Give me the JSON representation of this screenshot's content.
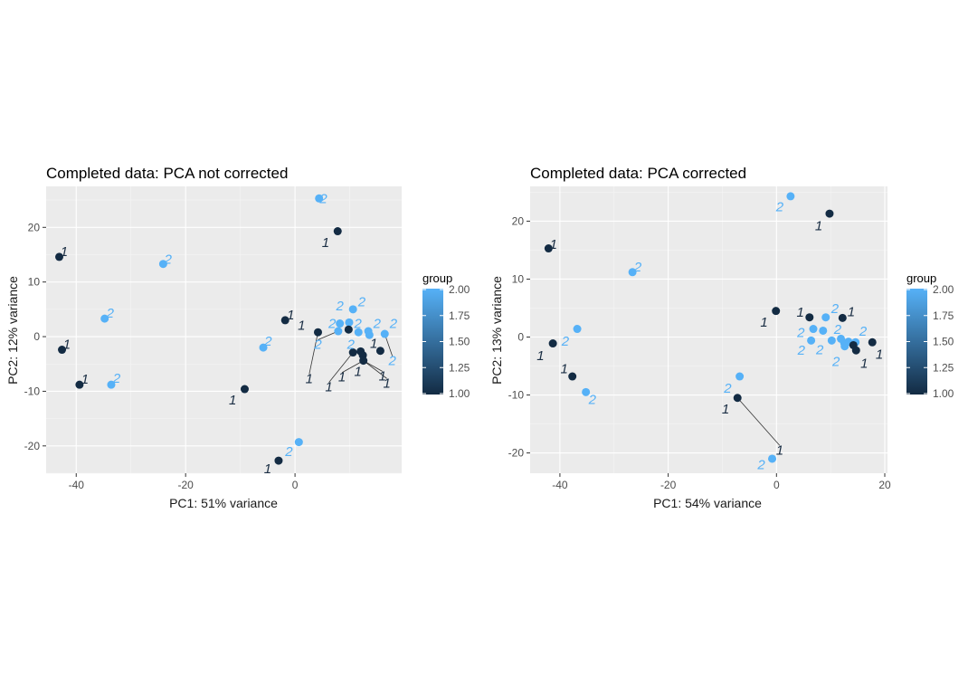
{
  "colors": {
    "panel_bg": "#ebebeb",
    "grid_major": "#ffffff",
    "group_low": "#132b43",
    "group_high": "#56b1f7",
    "label_low": "#1a2e44",
    "label_high": "#56b1f7"
  },
  "chart_data": [
    {
      "type": "scatter",
      "title": "Completed data: PCA not corrected",
      "xlabel": "PC1: 51% variance",
      "ylabel": "PC2: 12% variance",
      "xlim": [
        -45.5,
        19.5
      ],
      "ylim": [
        -25,
        27.5
      ],
      "xticks": [
        -40,
        -20,
        0
      ],
      "yticks": [
        -20,
        -10,
        0,
        10,
        20
      ],
      "grid": true,
      "legend": {
        "title": "group",
        "placement": "right",
        "type": "colorbar",
        "range": [
          1.0,
          2.0
        ],
        "labels": [
          "2.00",
          "1.75",
          "1.50",
          "1.25",
          "1.00"
        ]
      },
      "points": [
        {
          "x": 4.4,
          "y": 25.3,
          "group": 2,
          "label": "2"
        },
        {
          "x": 7.8,
          "y": 19.3,
          "group": 1,
          "label": "1"
        },
        {
          "x": -43.1,
          "y": 14.6,
          "group": 1,
          "label": "1"
        },
        {
          "x": -24.1,
          "y": 13.3,
          "group": 2,
          "label": "2"
        },
        {
          "x": -34.8,
          "y": 3.3,
          "group": 2,
          "label": "2"
        },
        {
          "x": -42.6,
          "y": -2.4,
          "group": 1,
          "label": "1"
        },
        {
          "x": -1.8,
          "y": 3.0,
          "group": 1,
          "label": "1"
        },
        {
          "x": -5.8,
          "y": -2.0,
          "group": 2,
          "label": "2"
        },
        {
          "x": -39.4,
          "y": -8.8,
          "group": 1,
          "label": "1"
        },
        {
          "x": -33.6,
          "y": -8.8,
          "group": 2,
          "label": "2"
        },
        {
          "x": -9.2,
          "y": -9.6,
          "group": 1,
          "label": "1"
        },
        {
          "x": 0.7,
          "y": -19.3,
          "group": 2,
          "label": "2"
        },
        {
          "x": -3.0,
          "y": -22.7,
          "group": 1,
          "label": "1"
        },
        {
          "x": 10.6,
          "y": 5.0,
          "group": 2,
          "label": "2"
        },
        {
          "x": 8.2,
          "y": 2.4,
          "group": 2,
          "label": "2"
        },
        {
          "x": 9.9,
          "y": 2.6,
          "group": 2,
          "label": "2"
        },
        {
          "x": 4.2,
          "y": 0.8,
          "group": 1,
          "label": "1"
        },
        {
          "x": 7.9,
          "y": 1.0,
          "group": 2,
          "label": "2"
        },
        {
          "x": 9.8,
          "y": 1.3,
          "group": 1,
          "label": "1"
        },
        {
          "x": 11.6,
          "y": 0.8,
          "group": 2,
          "label": "2"
        },
        {
          "x": 13.4,
          "y": 1.0,
          "group": 2,
          "label": "2"
        },
        {
          "x": 13.6,
          "y": 0.3,
          "group": 2,
          "label": "2"
        },
        {
          "x": 16.4,
          "y": 0.5,
          "group": 2,
          "label": "2"
        },
        {
          "x": 10.6,
          "y": -2.9,
          "group": 1,
          "label": "1"
        },
        {
          "x": 12.0,
          "y": -2.7,
          "group": 1,
          "label": "1"
        },
        {
          "x": 12.4,
          "y": -3.4,
          "group": 1,
          "label": "1"
        },
        {
          "x": 12.5,
          "y": -4.4,
          "group": 1,
          "label": "1"
        },
        {
          "x": 15.6,
          "y": -2.6,
          "group": 1,
          "label": "1"
        }
      ],
      "labels": [
        {
          "x": 5.2,
          "y": 25.3,
          "text": "2",
          "group": 2
        },
        {
          "x": 5.6,
          "y": 17.2,
          "text": "1",
          "group": 1
        },
        {
          "x": -42.2,
          "y": 15.6,
          "text": "1",
          "group": 1
        },
        {
          "x": -23.2,
          "y": 14.2,
          "text": "2",
          "group": 2
        },
        {
          "x": -33.8,
          "y": 4.3,
          "text": "2",
          "group": 2
        },
        {
          "x": -41.7,
          "y": -1.4,
          "text": "1",
          "group": 1
        },
        {
          "x": -0.8,
          "y": 4.0,
          "text": "1",
          "group": 1
        },
        {
          "x": -4.9,
          "y": -0.8,
          "text": "2",
          "group": 2
        },
        {
          "x": -38.4,
          "y": -7.8,
          "text": "1",
          "group": 1
        },
        {
          "x": -32.6,
          "y": -7.6,
          "text": "2",
          "group": 2
        },
        {
          "x": -11.4,
          "y": -11.6,
          "text": "1",
          "group": 1
        },
        {
          "x": -1.1,
          "y": -21.0,
          "text": "2",
          "group": 2
        },
        {
          "x": -5.0,
          "y": -24.2,
          "text": "1",
          "group": 1
        },
        {
          "x": 8.2,
          "y": 5.6,
          "text": "2",
          "group": 2
        },
        {
          "x": 12.2,
          "y": 6.4,
          "text": "2",
          "group": 2
        },
        {
          "x": 6.8,
          "y": 2.4,
          "text": "2",
          "group": 2
        },
        {
          "x": 11.5,
          "y": 2.4,
          "text": "2",
          "group": 2
        },
        {
          "x": 15.0,
          "y": 2.4,
          "text": "2",
          "group": 2
        },
        {
          "x": 18.0,
          "y": 2.4,
          "text": "2",
          "group": 2
        },
        {
          "x": 1.2,
          "y": 2.1,
          "text": "1",
          "group": 1
        },
        {
          "x": 4.2,
          "y": -1.4,
          "text": "2",
          "group": 2
        },
        {
          "x": 10.2,
          "y": -1.4,
          "text": "2",
          "group": 2
        },
        {
          "x": 14.4,
          "y": -1.2,
          "text": "1",
          "group": 1
        },
        {
          "x": 17.8,
          "y": -4.4,
          "text": "2",
          "group": 2
        },
        {
          "x": 2.6,
          "y": -7.7,
          "text": "1",
          "group": 1
        },
        {
          "x": 6.2,
          "y": -9.2,
          "text": "1",
          "group": 1
        },
        {
          "x": 8.6,
          "y": -7.4,
          "text": "1",
          "group": 1
        },
        {
          "x": 11.5,
          "y": -6.4,
          "text": "1",
          "group": 1
        },
        {
          "x": 16.0,
          "y": -7.2,
          "text": "1",
          "group": 1
        },
        {
          "x": 16.8,
          "y": -8.5,
          "text": "1",
          "group": 1
        }
      ]
    },
    {
      "type": "scatter",
      "title": "Completed data: PCA corrected",
      "xlabel": "PC1: 54% variance",
      "ylabel": "PC2: 13% variance",
      "xlim": [
        -45.5,
        20.5
      ],
      "ylim": [
        -23.5,
        26
      ],
      "xticks": [
        -40,
        -20,
        0,
        20
      ],
      "yticks": [
        -20,
        -10,
        0,
        10,
        20
      ],
      "grid": true,
      "legend": {
        "title": "group",
        "placement": "right",
        "type": "colorbar",
        "range": [
          1.0,
          2.0
        ],
        "labels": [
          "2.00",
          "1.75",
          "1.50",
          "1.25",
          "1.00"
        ]
      },
      "points": [
        {
          "x": 2.6,
          "y": 24.3,
          "group": 2,
          "label": "2"
        },
        {
          "x": 9.8,
          "y": 21.3,
          "group": 1,
          "label": "1"
        },
        {
          "x": -42.1,
          "y": 15.3,
          "group": 1,
          "label": "1"
        },
        {
          "x": -26.6,
          "y": 11.2,
          "group": 2,
          "label": "2"
        },
        {
          "x": -36.8,
          "y": 1.4,
          "group": 2,
          "label": "2"
        },
        {
          "x": -41.3,
          "y": -1.1,
          "group": 1,
          "label": "1"
        },
        {
          "x": -0.1,
          "y": 4.5,
          "group": 1,
          "label": "1"
        },
        {
          "x": 6.1,
          "y": 3.4,
          "group": 1,
          "label": "1"
        },
        {
          "x": 9.1,
          "y": 3.4,
          "group": 2,
          "label": "2"
        },
        {
          "x": 12.2,
          "y": 3.3,
          "group": 1,
          "label": "1"
        },
        {
          "x": 6.8,
          "y": 1.4,
          "group": 2,
          "label": "2"
        },
        {
          "x": 8.6,
          "y": 1.1,
          "group": 2,
          "label": "2"
        },
        {
          "x": 6.4,
          "y": -0.6,
          "group": 2,
          "label": "2"
        },
        {
          "x": 10.2,
          "y": -0.6,
          "group": 2,
          "label": "2"
        },
        {
          "x": 11.9,
          "y": -0.3,
          "group": 2,
          "label": "2"
        },
        {
          "x": 12.5,
          "y": -1.0,
          "group": 2,
          "label": "2"
        },
        {
          "x": 13.3,
          "y": -0.8,
          "group": 2,
          "label": "2"
        },
        {
          "x": 14.6,
          "y": -0.9,
          "group": 2,
          "label": "2"
        },
        {
          "x": 12.6,
          "y": -1.6,
          "group": 2,
          "label": "2"
        },
        {
          "x": 14.2,
          "y": -1.4,
          "group": 1,
          "label": "1"
        },
        {
          "x": 14.7,
          "y": -2.3,
          "group": 1,
          "label": "1"
        },
        {
          "x": 17.7,
          "y": -0.9,
          "group": 1,
          "label": "1"
        },
        {
          "x": -37.7,
          "y": -6.8,
          "group": 1,
          "label": "1"
        },
        {
          "x": -35.2,
          "y": -9.5,
          "group": 2,
          "label": "2"
        },
        {
          "x": -6.8,
          "y": -6.8,
          "group": 2,
          "label": "2"
        },
        {
          "x": -7.2,
          "y": -10.5,
          "group": 1,
          "label": "1"
        },
        {
          "x": -0.8,
          "y": -21.0,
          "group": 2,
          "label": "2"
        }
      ],
      "labels": [
        {
          "x": 0.6,
          "y": 22.5,
          "text": "2",
          "group": 2
        },
        {
          "x": 7.8,
          "y": 19.2,
          "text": "1",
          "group": 1
        },
        {
          "x": -41.2,
          "y": 16.0,
          "text": "1",
          "group": 1
        },
        {
          "x": -25.6,
          "y": 12.1,
          "text": "2",
          "group": 2
        },
        {
          "x": -39.0,
          "y": -0.7,
          "text": "2",
          "group": 2
        },
        {
          "x": -43.6,
          "y": -3.2,
          "text": "1",
          "group": 1
        },
        {
          "x": -2.3,
          "y": 2.6,
          "text": "1",
          "group": 1
        },
        {
          "x": 4.4,
          "y": 4.3,
          "text": "1",
          "group": 1
        },
        {
          "x": 10.8,
          "y": 4.9,
          "text": "2",
          "group": 2
        },
        {
          "x": 13.8,
          "y": 4.4,
          "text": "1",
          "group": 1
        },
        {
          "x": 4.5,
          "y": 0.8,
          "text": "2",
          "group": 2
        },
        {
          "x": 11.3,
          "y": 1.3,
          "text": "2",
          "group": 2
        },
        {
          "x": 16.0,
          "y": 1.0,
          "text": "2",
          "group": 2
        },
        {
          "x": 4.6,
          "y": -2.3,
          "text": "2",
          "group": 2
        },
        {
          "x": 8.0,
          "y": -2.2,
          "text": "2",
          "group": 2
        },
        {
          "x": 11.0,
          "y": -4.2,
          "text": "2",
          "group": 2
        },
        {
          "x": 16.2,
          "y": -4.5,
          "text": "1",
          "group": 1
        },
        {
          "x": 19.0,
          "y": -3.0,
          "text": "1",
          "group": 1
        },
        {
          "x": -39.2,
          "y": -5.5,
          "text": "1",
          "group": 1
        },
        {
          "x": -34.0,
          "y": -10.8,
          "text": "2",
          "group": 2
        },
        {
          "x": -9.0,
          "y": -8.8,
          "text": "2",
          "group": 2
        },
        {
          "x": -9.4,
          "y": -12.4,
          "text": "1",
          "group": 1
        },
        {
          "x": 0.6,
          "y": -19.5,
          "text": "1",
          "group": 1
        },
        {
          "x": -2.8,
          "y": -22.0,
          "text": "2",
          "group": 2
        }
      ]
    }
  ]
}
